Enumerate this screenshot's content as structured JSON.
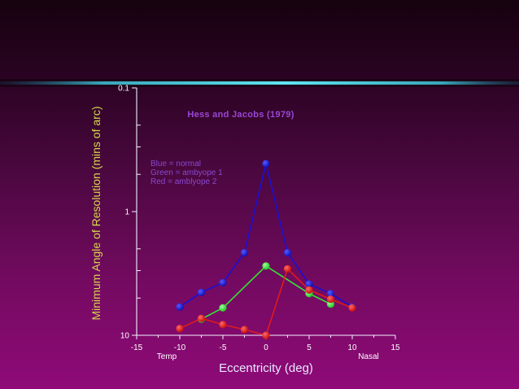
{
  "chart_data": {
    "type": "line",
    "title": "Hess and Jacobs (1979)",
    "xlabel": "Eccentricity (deg)",
    "ylabel": "Minimum Angle of Resolution (mins of arc)",
    "xlim": [
      -15,
      15
    ],
    "ylim": [
      0.1,
      10
    ],
    "yscale": "log",
    "yaxis_inverted": true,
    "x_ticks": [
      -15,
      -10,
      -5,
      0,
      5,
      10,
      15
    ],
    "x_tick_labels": [
      "-15",
      "-10",
      "-5",
      "0",
      "5",
      "10",
      "15"
    ],
    "y_major_ticks": [
      0.1,
      1,
      10
    ],
    "y_major_tick_labels": [
      "0.1",
      "1",
      "10"
    ],
    "y_minor_ticks": [
      0.2,
      0.3,
      0.5,
      2,
      3,
      5
    ],
    "x_side_labels": {
      "left": "Temp",
      "right": "Nasal"
    },
    "legend": [
      "Blue = normal",
      "Green = ambyope 1",
      "Red = amblyope 2"
    ],
    "legend_placement": "upper-left",
    "grid": false,
    "series": [
      {
        "name": "normal",
        "color": "#1a10d6",
        "x": [
          -10,
          -7.5,
          -5,
          -2.5,
          0,
          2.5,
          5,
          7.5,
          10
        ],
        "y": [
          5.9,
          4.5,
          3.75,
          2.15,
          0.41,
          2.15,
          3.85,
          4.6,
          5.9
        ]
      },
      {
        "name": "ambyope 1",
        "color": "#33e633",
        "x": [
          -7.5,
          -5,
          0,
          5,
          7.5
        ],
        "y": [
          7.4,
          6.0,
          2.75,
          4.6,
          5.6
        ]
      },
      {
        "name": "amblyope 2",
        "color": "#e01a1a",
        "x": [
          -10,
          -7.5,
          -5,
          -2.5,
          0,
          2.5,
          5,
          7.5,
          10
        ],
        "y": [
          8.8,
          7.3,
          8.2,
          9.0,
          10.0,
          2.9,
          4.3,
          5.1,
          6.0
        ]
      }
    ]
  }
}
